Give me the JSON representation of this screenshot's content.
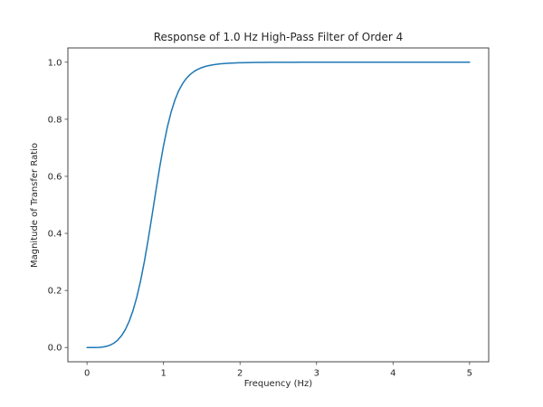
{
  "figure": {
    "background": "#ffffff"
  },
  "chart_data": {
    "type": "line",
    "title": "Response of 1.0 Hz High-Pass Filter of Order 4",
    "xlabel": "Frequency (Hz)",
    "ylabel": "Magnitude of Transfer Ratio",
    "xlim": [
      -0.25,
      5.25
    ],
    "ylim": [
      -0.05,
      1.05
    ],
    "xticks": [
      0,
      1,
      2,
      3,
      4,
      5
    ],
    "xtick_labels": [
      "0",
      "1",
      "2",
      "3",
      "4",
      "5"
    ],
    "yticks": [
      0.0,
      0.2,
      0.4,
      0.6,
      0.8,
      1.0
    ],
    "ytick_labels": [
      "0.0",
      "0.2",
      "0.4",
      "0.6",
      "0.8",
      "1.0"
    ],
    "grid": false,
    "legend": null,
    "line_color": "#1f77b4",
    "axis_color": "#444444",
    "text_color": "#262626",
    "series": [
      {
        "name": "magnitude",
        "x": [
          0.0,
          0.05,
          0.1,
          0.15,
          0.2,
          0.25,
          0.3,
          0.35,
          0.4,
          0.45,
          0.5,
          0.55,
          0.6,
          0.65,
          0.7,
          0.75,
          0.8,
          0.85,
          0.9,
          0.95,
          1.0,
          1.05,
          1.1,
          1.15,
          1.2,
          1.25,
          1.3,
          1.35,
          1.4,
          1.45,
          1.5,
          1.55,
          1.6,
          1.65,
          1.7,
          1.75,
          1.8,
          1.85,
          1.9,
          1.95,
          2.0,
          2.1,
          2.2,
          2.3,
          2.4,
          2.5,
          2.6,
          2.7,
          2.8,
          2.9,
          3.0,
          3.2,
          3.4,
          3.6,
          3.8,
          4.0,
          4.2,
          4.4,
          4.6,
          4.8,
          5.0
        ],
        "y": [
          0.0,
          1e-05,
          0.0001,
          0.00051,
          0.0016,
          0.00391,
          0.0081,
          0.015,
          0.02559,
          0.04097,
          0.06238,
          0.09113,
          0.12852,
          0.17572,
          0.23347,
          0.30167,
          0.37904,
          0.46275,
          0.54859,
          0.63154,
          0.70711,
          0.77231,
          0.82577,
          0.86812,
          0.90073,
          0.92531,
          0.94382,
          0.95754,
          0.96775,
          0.97536,
          0.98104,
          0.98532,
          0.98856,
          0.99102,
          0.99291,
          0.99436,
          0.99549,
          0.99638,
          0.99707,
          0.99762,
          0.99805,
          0.99868,
          0.99909,
          0.99936,
          0.99955,
          0.99967,
          0.99976,
          0.99982,
          0.99987,
          0.9999,
          0.99992,
          0.99995,
          0.99997,
          0.99998,
          0.99999,
          0.99999,
          1.0,
          1.0,
          1.0,
          1.0,
          1.0
        ]
      }
    ]
  }
}
